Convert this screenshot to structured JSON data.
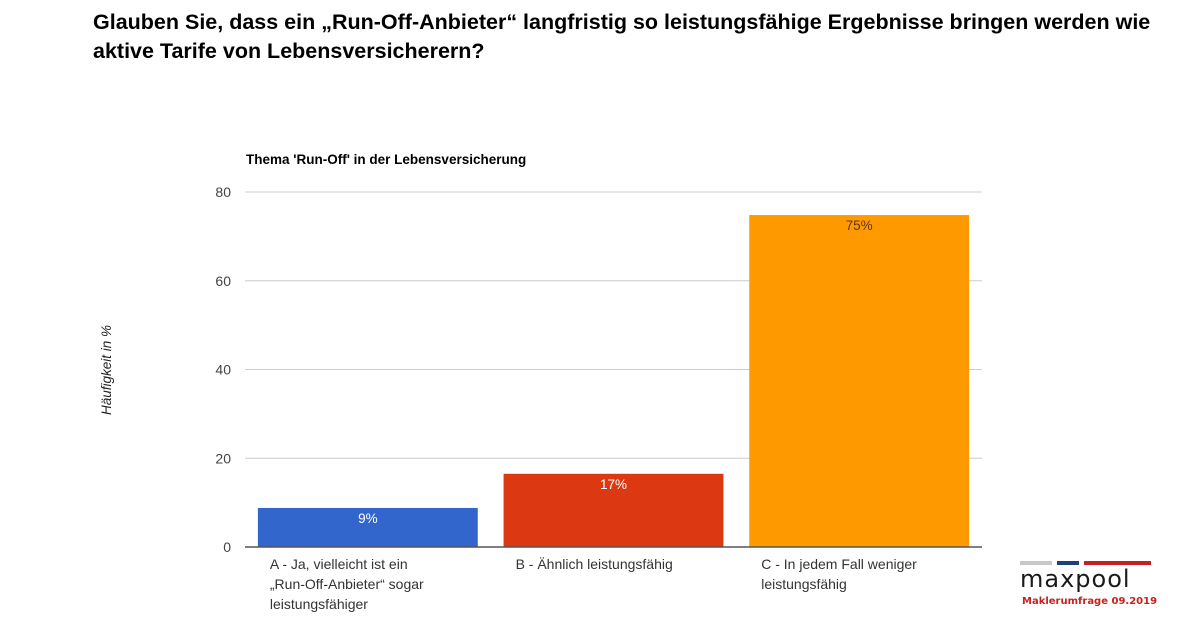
{
  "headline": "Glauben Sie, dass ein „Run-Off-Anbieter“ langfristig so leistungsfähige Ergebnisse bringen werden wie aktive Tarife von Lebensversicherern?",
  "chart_data": {
    "type": "bar",
    "title": "Thema 'Run-Off' in der Lebensversicherung",
    "xlabel": "",
    "ylabel": "Häufigkeit in %",
    "ylim": [
      0,
      80
    ],
    "yticks": [
      0,
      20,
      40,
      60,
      80
    ],
    "grid": true,
    "legend": "none",
    "categories": [
      [
        "A - Ja, vielleicht ist ein",
        "„Run-Off-Anbieter“ sogar",
        "leistungsfähiger"
      ],
      [
        "B - Ähnlich leistungsfähig"
      ],
      [
        "C - In jedem Fall weniger",
        "leistungsfähig"
      ]
    ],
    "values": [
      8.8,
      16.5,
      74.8
    ],
    "data_labels": [
      "9%",
      "17%",
      "75%"
    ],
    "colors": [
      "#3366cc",
      "#dc3912",
      "#ff9900"
    ],
    "label_colors": [
      "#ffffff",
      "#ffffff",
      "#5a3a00"
    ]
  },
  "logo": {
    "name": "maxpool",
    "subtitle": "Maklerumfrage 09.2019",
    "stripe_colors": [
      "#c8c8c8",
      "#1f3f7a",
      "#c8201e"
    ]
  }
}
